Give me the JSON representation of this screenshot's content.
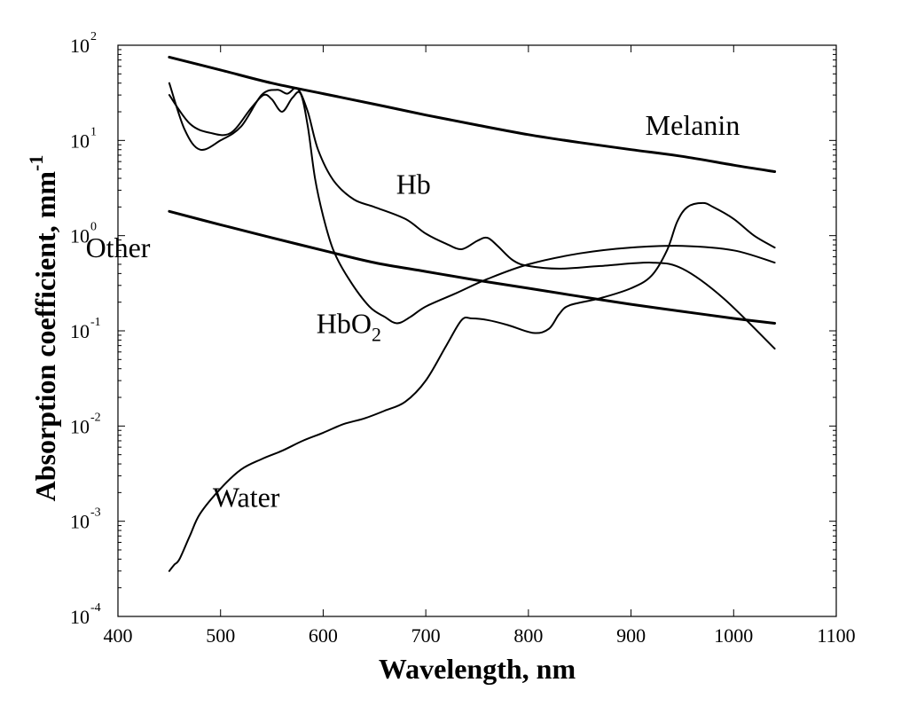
{
  "chart_data": {
    "type": "line",
    "title": "",
    "xlabel": "Wavelength, nm",
    "ylabel_main": "Absorption coefficient,  mm",
    "ylabel_sup": "-1",
    "xlim": [
      400,
      1100
    ],
    "ylim": [
      0.0001,
      100
    ],
    "yscale": "log",
    "grid": false,
    "x_ticks": [
      400,
      500,
      600,
      700,
      800,
      900,
      1000,
      1100
    ],
    "y_ticks": [
      {
        "value": 0.0001,
        "base": "10",
        "exp": "-4"
      },
      {
        "value": 0.001,
        "base": "10",
        "exp": "-3"
      },
      {
        "value": 0.01,
        "base": "10",
        "exp": "-2"
      },
      {
        "value": 0.1,
        "base": "10",
        "exp": "-1"
      },
      {
        "value": 1,
        "base": "10",
        "exp": "0"
      },
      {
        "value": 10,
        "base": "10",
        "exp": "1"
      },
      {
        "value": 100,
        "base": "10",
        "exp": "2"
      }
    ],
    "series": [
      {
        "name": "Melanin",
        "width": 3,
        "x": [
          450,
          500,
          550,
          600,
          650,
          700,
          750,
          800,
          850,
          900,
          950,
          1000,
          1040
        ],
        "y": [
          75,
          55,
          40,
          31,
          24,
          18.5,
          14.5,
          11.5,
          9.5,
          8,
          6.8,
          5.5,
          4.7
        ]
      },
      {
        "name": "Hb",
        "width": 2,
        "x": [
          450,
          465,
          480,
          500,
          520,
          540,
          555,
          565,
          575,
          585,
          595,
          610,
          630,
          650,
          680,
          700,
          720,
          735,
          750,
          760,
          770,
          785,
          800,
          830,
          870,
          920,
          950,
          990,
          1040
        ],
        "y": [
          40,
          13,
          8,
          10,
          14,
          30,
          34,
          31,
          35,
          20,
          8,
          3.8,
          2.4,
          2.0,
          1.5,
          1.05,
          0.82,
          0.72,
          0.88,
          0.95,
          0.78,
          0.55,
          0.48,
          0.45,
          0.48,
          0.52,
          0.45,
          0.22,
          0.065
        ]
      },
      {
        "name": "HbO2",
        "width": 2,
        "x": [
          450,
          470,
          490,
          510,
          530,
          542,
          550,
          560,
          570,
          578,
          585,
          592,
          600,
          610,
          625,
          645,
          660,
          672,
          685,
          700,
          730,
          760,
          800,
          850,
          900,
          950,
          1000,
          1040
        ],
        "y": [
          30,
          15,
          12,
          12,
          22,
          30,
          27,
          20,
          28,
          31,
          14,
          4,
          1.6,
          0.7,
          0.35,
          0.18,
          0.14,
          0.12,
          0.14,
          0.18,
          0.25,
          0.35,
          0.5,
          0.65,
          0.75,
          0.78,
          0.7,
          0.52
        ]
      },
      {
        "name": "Other",
        "width": 3,
        "x": [
          450,
          500,
          550,
          600,
          650,
          700,
          750,
          800,
          850,
          900,
          950,
          1000,
          1040
        ],
        "y": [
          1.8,
          1.3,
          0.95,
          0.7,
          0.52,
          0.42,
          0.34,
          0.28,
          0.23,
          0.19,
          0.16,
          0.135,
          0.12
        ]
      },
      {
        "name": "Water",
        "width": 2,
        "x": [
          450,
          455,
          460,
          470,
          480,
          500,
          520,
          540,
          560,
          580,
          600,
          620,
          640,
          660,
          680,
          700,
          720,
          735,
          745,
          760,
          780,
          805,
          820,
          830,
          840,
          870,
          900,
          920,
          935,
          945,
          955,
          970,
          980,
          1000,
          1020,
          1040
        ],
        "y": [
          0.0003,
          0.00035,
          0.0004,
          0.0007,
          0.0012,
          0.0022,
          0.0035,
          0.0045,
          0.0055,
          0.007,
          0.0085,
          0.0105,
          0.012,
          0.0145,
          0.018,
          0.03,
          0.07,
          0.13,
          0.135,
          0.13,
          0.115,
          0.095,
          0.105,
          0.15,
          0.185,
          0.22,
          0.28,
          0.38,
          0.7,
          1.4,
          2.0,
          2.2,
          2.0,
          1.5,
          1.0,
          0.75
        ]
      }
    ],
    "annotations": [
      {
        "text": "Melanin",
        "x": 960,
        "y": 14.5
      },
      {
        "text": "Hb",
        "x": 688,
        "y": 3.5
      },
      {
        "text": "Other",
        "x": 400,
        "y": 0.75
      },
      {
        "text": "HbO",
        "sub": "2",
        "x": 625,
        "y": 0.12
      },
      {
        "text": "Water",
        "x": 525,
        "y": 0.0018
      }
    ]
  }
}
